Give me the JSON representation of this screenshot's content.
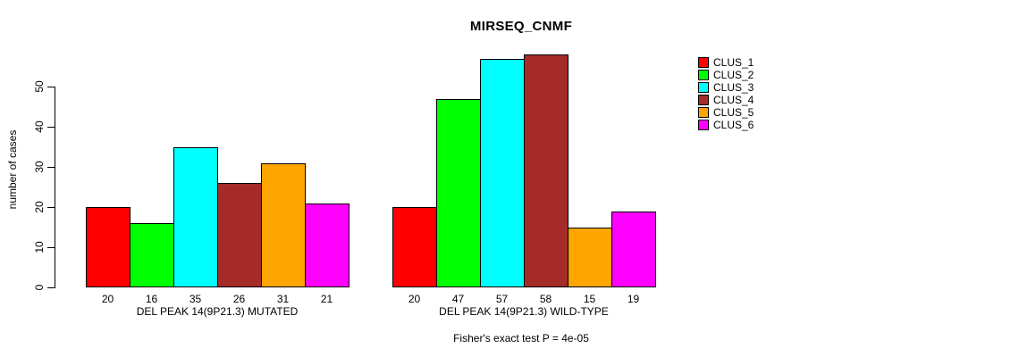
{
  "page": {
    "background": "#FFFFFF",
    "text_color": "#000000"
  },
  "chart_data": {
    "type": "bar",
    "title": "MIRSEQ_CNMF",
    "ylabel": "number of cases",
    "footer": "Fisher's exact test P = 4e-05",
    "yticks": [
      0,
      10,
      20,
      30,
      40,
      50
    ],
    "ylim": [
      0,
      58
    ],
    "grid": false,
    "legend_position": "top-right",
    "bar_edge_color": "#000000",
    "bar_value_labels": true,
    "categories": [
      "DEL PEAK 14(9P21.3) MUTATED",
      "DEL PEAK 14(9P21.3) WILD-TYPE"
    ],
    "series": [
      {
        "name": "CLUS_1",
        "color": "#FF0000",
        "values": [
          20,
          20
        ]
      },
      {
        "name": "CLUS_2",
        "color": "#00FF00",
        "values": [
          16,
          47
        ]
      },
      {
        "name": "CLUS_3",
        "color": "#00FFFF",
        "values": [
          35,
          57
        ]
      },
      {
        "name": "CLUS_4",
        "color": "#A52A2A",
        "values": [
          26,
          58
        ]
      },
      {
        "name": "CLUS_5",
        "color": "#FFA500",
        "values": [
          31,
          15
        ]
      },
      {
        "name": "CLUS_6",
        "color": "#FF00FF",
        "values": [
          21,
          19
        ]
      }
    ]
  }
}
